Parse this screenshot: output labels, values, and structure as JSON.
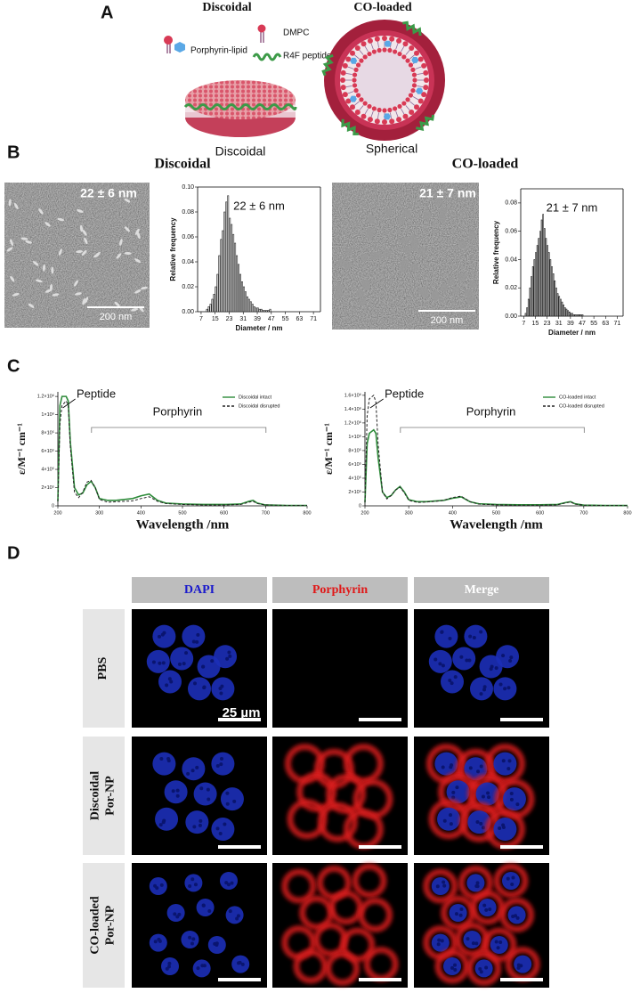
{
  "panel_labels": [
    "A",
    "B",
    "C",
    "D"
  ],
  "panel_a": {
    "titles": [
      "Discoidal",
      "CO-loaded"
    ],
    "legend": [
      "Porphyrin-lipid",
      "DMPC",
      "R4F peptide"
    ],
    "captions": [
      "Discoidal",
      "Spherical"
    ]
  },
  "panel_b": {
    "titles": [
      "Discoidal",
      "CO-loaded"
    ],
    "images": [
      {
        "label": "22 ± 6 nm",
        "scale_bar": "200 nm"
      },
      {
        "label": "21 ± 7 nm",
        "scale_bar": "200 nm"
      }
    ]
  },
  "chart_data": [
    {
      "type": "histogram",
      "annotation": "22 ± 6 nm",
      "xlabel": "Diameter / nm",
      "ylabel": "Relative frequency",
      "color": "#222222",
      "bins": [
        10,
        11,
        12,
        13,
        14,
        15,
        16,
        17,
        18,
        19,
        20,
        21,
        22,
        23,
        24,
        25,
        26,
        27,
        28,
        29,
        30,
        31,
        32,
        33,
        34,
        35,
        36,
        37,
        38,
        39,
        40,
        41,
        42,
        43,
        44,
        45,
        46,
        47
      ],
      "values": [
        0.002,
        0.004,
        0.006,
        0.01,
        0.014,
        0.02,
        0.03,
        0.045,
        0.058,
        0.065,
        0.08,
        0.088,
        0.093,
        0.075,
        0.07,
        0.062,
        0.055,
        0.045,
        0.038,
        0.03,
        0.024,
        0.02,
        0.016,
        0.012,
        0.01,
        0.008,
        0.006,
        0.004,
        0.003,
        0.003,
        0.002,
        0.002,
        0.001,
        0.001,
        0.001,
        0.001,
        0.002
      ],
      "xlim": [
        5,
        75
      ],
      "ylim": [
        0,
        0.1
      ],
      "xticks": [
        7,
        15,
        23,
        31,
        39,
        47,
        55,
        63,
        71
      ],
      "yticks": [
        {
          "value": 0,
          "label": "0.00"
        },
        0.02,
        0.04,
        0.06,
        0.08,
        {
          "value": 0.1,
          "label": "0.10"
        }
      ]
    },
    {
      "type": "histogram",
      "annotation": "21 ± 7 nm",
      "xlabel": "Diameter / nm",
      "ylabel": "Relative frequency",
      "color": "#222222",
      "bins": [
        8,
        9,
        10,
        11,
        12,
        13,
        14,
        15,
        16,
        17,
        18,
        19,
        20,
        21,
        22,
        23,
        24,
        25,
        26,
        27,
        28,
        29,
        30,
        31,
        32,
        33,
        34,
        35,
        36,
        37,
        38,
        39,
        40,
        41,
        42,
        43,
        44,
        45,
        46,
        47,
        48
      ],
      "values": [
        0.002,
        0.006,
        0.012,
        0.02,
        0.028,
        0.035,
        0.04,
        0.045,
        0.05,
        0.055,
        0.06,
        0.068,
        0.072,
        0.062,
        0.055,
        0.05,
        0.045,
        0.04,
        0.035,
        0.03,
        0.025,
        0.02,
        0.016,
        0.014,
        0.012,
        0.01,
        0.008,
        0.006,
        0.005,
        0.004,
        0.003,
        0.002,
        0.002,
        0.001,
        0.001,
        0.001,
        0.001,
        0.001,
        0.001,
        0.001
      ],
      "xlim": [
        5,
        75
      ],
      "ylim": [
        0,
        0.09
      ],
      "xticks": [
        7,
        15,
        23,
        31,
        39,
        47,
        55,
        63,
        71
      ],
      "yticks": [
        {
          "value": 0,
          "label": "0.00"
        },
        0.02,
        0.04,
        0.06,
        0.08
      ]
    },
    {
      "type": "line",
      "xlabel": "Wavelength /nm",
      "ylabel": "ε/M⁻¹ cm⁻¹",
      "annotations": [
        "Peptide",
        "Porphyrin"
      ],
      "legend": "upper right",
      "x": [
        200,
        205,
        210,
        220,
        225,
        230,
        240,
        250,
        260,
        270,
        280,
        290,
        300,
        320,
        340,
        360,
        380,
        400,
        420,
        440,
        460,
        500,
        550,
        600,
        640,
        660,
        670,
        680,
        700,
        750,
        800
      ],
      "series": [
        {
          "name": "Discoidal intact",
          "color": "#2e8b3a",
          "linestyle": "solid",
          "values": [
            50000,
            1100000,
            1200000,
            1200000,
            1150000,
            700000,
            200000,
            120000,
            140000,
            230000,
            270000,
            200000,
            80000,
            60000,
            60000,
            70000,
            80000,
            110000,
            130000,
            60000,
            30000,
            20000,
            15000,
            15000,
            20000,
            50000,
            60000,
            30000,
            10000,
            5000,
            5000
          ]
        },
        {
          "name": "Discoidal disrupted",
          "color": "#222222",
          "linestyle": "dashed",
          "values": [
            50000,
            900000,
            1100000,
            1150000,
            1100000,
            650000,
            150000,
            90000,
            150000,
            260000,
            280000,
            200000,
            70000,
            40000,
            45000,
            50000,
            55000,
            80000,
            100000,
            50000,
            25000,
            15000,
            10000,
            10000,
            15000,
            40000,
            50000,
            25000,
            10000,
            5000,
            5000
          ]
        }
      ],
      "xlim": [
        200,
        800
      ],
      "ylim": [
        0,
        1250000
      ],
      "xticks": [
        200,
        300,
        400,
        500,
        600,
        700,
        800
      ],
      "yticks": [
        0,
        {
          "value": 200000,
          "label": "2×10⁵"
        },
        {
          "value": 400000,
          "label": "4×10⁵"
        },
        {
          "value": 600000,
          "label": "6×10⁵"
        },
        {
          "value": 800000,
          "label": "8×10⁵"
        },
        {
          "value": 1000000,
          "label": "1×10⁶"
        },
        {
          "value": 1200000,
          "label": "1.2×10⁶"
        }
      ]
    },
    {
      "type": "line",
      "xlabel": "Wavelength /nm",
      "ylabel": "ε/M⁻¹ cm⁻¹",
      "annotations": [
        "Peptide",
        "Porphyrin"
      ],
      "legend": "upper right",
      "x": [
        200,
        205,
        210,
        220,
        225,
        230,
        240,
        250,
        260,
        270,
        280,
        290,
        300,
        320,
        340,
        360,
        380,
        400,
        420,
        440,
        460,
        500,
        550,
        600,
        640,
        660,
        670,
        680,
        700,
        750,
        800
      ],
      "series": [
        {
          "name": "CO-loaded intact",
          "color": "#2e8b3a",
          "linestyle": "solid",
          "values": [
            50000,
            900000,
            1050000,
            1100000,
            1050000,
            700000,
            200000,
            120000,
            150000,
            230000,
            280000,
            200000,
            90000,
            60000,
            60000,
            70000,
            80000,
            110000,
            130000,
            60000,
            30000,
            20000,
            15000,
            15000,
            20000,
            50000,
            60000,
            30000,
            10000,
            5000,
            5000
          ]
        },
        {
          "name": "CO-loaded disrupted",
          "color": "#222222",
          "linestyle": "dashed",
          "values": [
            50000,
            1300000,
            1550000,
            1600000,
            1500000,
            900000,
            200000,
            100000,
            150000,
            230000,
            270000,
            190000,
            80000,
            50000,
            55000,
            65000,
            80000,
            120000,
            140000,
            60000,
            25000,
            15000,
            10000,
            10000,
            15000,
            45000,
            55000,
            25000,
            10000,
            5000,
            5000
          ]
        }
      ],
      "xlim": [
        200,
        800
      ],
      "ylim": [
        0,
        1650000
      ],
      "xticks": [
        200,
        300,
        400,
        500,
        600,
        700,
        800
      ],
      "yticks": [
        0,
        {
          "value": 200000,
          "label": "2×10⁵"
        },
        {
          "value": 400000,
          "label": "4×10⁵"
        },
        {
          "value": 600000,
          "label": "6×10⁵"
        },
        {
          "value": 800000,
          "label": "8×10⁵"
        },
        {
          "value": 1000000,
          "label": "1×10⁶"
        },
        {
          "value": 1200000,
          "label": "1.2×10⁶"
        },
        {
          "value": 1400000,
          "label": "1.4×10⁶"
        },
        {
          "value": 1600000,
          "label": "1.6×10⁶"
        }
      ]
    }
  ],
  "panel_d": {
    "columns": [
      "DAPI",
      "Porphyrin",
      "Merge"
    ],
    "rows": [
      [
        "PBS"
      ],
      [
        "Discoidal",
        "Por-NP"
      ],
      [
        "CO-loaded",
        "Por-NP"
      ]
    ],
    "scale_bar": "25 µm"
  }
}
